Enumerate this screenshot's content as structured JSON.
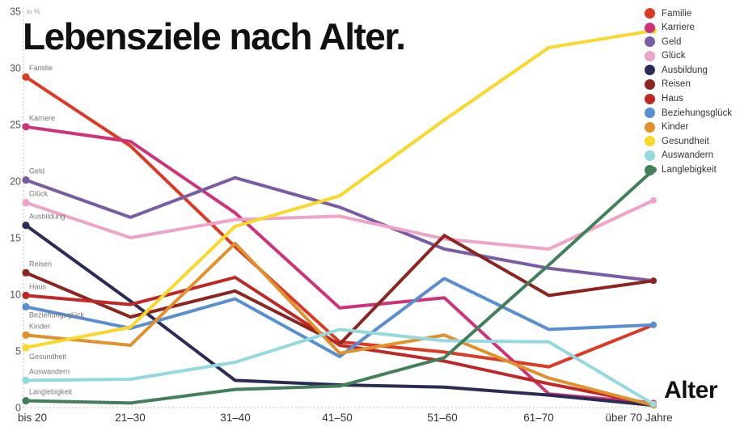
{
  "title": "Lebensziele nach Alter.",
  "y_axis": {
    "unit_label": "in %",
    "ticks": [
      0,
      5,
      10,
      15,
      20,
      25,
      30,
      35
    ]
  },
  "x_axis": {
    "label": "Alter"
  },
  "chart_data": {
    "type": "line",
    "title": "Lebensziele nach Alter.",
    "xlabel": "Alter",
    "ylabel": "in %",
    "ylim": [
      0,
      35
    ],
    "grid": "dotted left axis and dotted zero baseline only",
    "legend_position": "top-right",
    "x_categories": [
      "bis 20",
      "21–30",
      "31–40",
      "41–50",
      "51–60",
      "61–70",
      "über 70 Jahre"
    ],
    "series": [
      {
        "name": "Familie",
        "color": "#dc3a24",
        "values": [
          29.2,
          23.1,
          14.2,
          5.8,
          4.9,
          3.6,
          7.3
        ]
      },
      {
        "name": "Karriere",
        "color": "#ce3379",
        "values": [
          24.8,
          23.5,
          17.2,
          8.8,
          9.7,
          1.2,
          0.4
        ]
      },
      {
        "name": "Geld",
        "color": "#7a5ca5",
        "values": [
          20.1,
          16.8,
          20.3,
          17.7,
          14.0,
          12.3,
          11.2
        ]
      },
      {
        "name": "Glück",
        "color": "#efa3c8",
        "values": [
          18.1,
          15.0,
          16.6,
          16.9,
          14.9,
          14.0,
          18.3
        ]
      },
      {
        "name": "Ausbildung",
        "color": "#2a2c55",
        "values": [
          16.1,
          9.4,
          2.4,
          2.0,
          1.8,
          1.1,
          0.2
        ]
      },
      {
        "name": "Reisen",
        "color": "#8c2420",
        "values": [
          11.9,
          8.0,
          10.3,
          5.6,
          15.2,
          9.9,
          11.2
        ]
      },
      {
        "name": "Haus",
        "color": "#c02828",
        "values": [
          9.9,
          9.1,
          11.5,
          5.5,
          4.1,
          2.1,
          0.3
        ]
      },
      {
        "name": "Beziehungsglück",
        "color": "#5a8ed2",
        "values": [
          8.9,
          7.0,
          9.6,
          4.5,
          11.4,
          6.9,
          7.3
        ]
      },
      {
        "name": "Kinder",
        "color": "#e0912b",
        "values": [
          6.4,
          5.5,
          14.5,
          4.8,
          6.4,
          2.6,
          0.2
        ]
      },
      {
        "name": "Gesundheit",
        "color": "#f8d829",
        "values": [
          5.3,
          7.1,
          16.0,
          18.7,
          25.4,
          31.8,
          33.3
        ]
      },
      {
        "name": "Auswandern",
        "color": "#93d9de",
        "values": [
          2.4,
          2.5,
          4.0,
          6.9,
          5.9,
          5.8,
          0.3
        ]
      },
      {
        "name": "Langlebigkeit",
        "color": "#41805a",
        "values": [
          0.6,
          0.4,
          1.6,
          1.9,
          4.4,
          12.6,
          21.0
        ]
      }
    ]
  }
}
